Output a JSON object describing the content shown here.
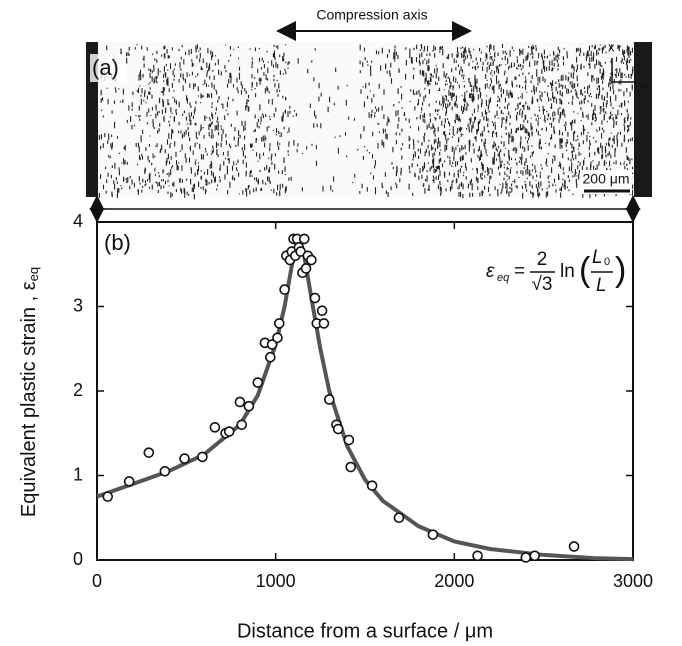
{
  "micrograph": {
    "label": "(a)",
    "arrow_label": "Compression axis",
    "scale_label": "200 μm",
    "axis_x": "x",
    "axis_y": "y"
  },
  "chart_data": {
    "type": "scatter",
    "panel_label": "(b)",
    "xlabel": "Distance from a surface / μm",
    "ylabel": "Equivalent plastic strain , ε",
    "ylabel_sub": "eq",
    "equation": {
      "lhs": "ε",
      "lhs_sub": "eq",
      "equals": "=",
      "num": "2",
      "den": "√3",
      "ln": "ln",
      "open": "(",
      "num2": "L",
      "num2_sub": "0",
      "den2": "L",
      "close": ")"
    },
    "xlim": [
      0,
      3000
    ],
    "xticks": [
      0,
      1000,
      2000,
      3000
    ],
    "ylim": [
      0,
      4
    ],
    "yticks": [
      0,
      1,
      2,
      3,
      4
    ],
    "series": [
      {
        "type": "scatter",
        "color": "#ffffff",
        "x": [
          60,
          180,
          290,
          380,
          490,
          590,
          660,
          720,
          740,
          800,
          810,
          850,
          900,
          940,
          970,
          980,
          1010,
          1020,
          1050,
          1060,
          1080,
          1090,
          1100,
          1110,
          1120,
          1130,
          1140,
          1150,
          1160,
          1170,
          1180,
          1200,
          1220,
          1230,
          1260,
          1270,
          1300,
          1340,
          1350,
          1410,
          1420,
          1540,
          1690,
          1880,
          2130,
          2400,
          2450,
          2670
        ],
        "values": [
          0.75,
          0.93,
          1.27,
          1.05,
          1.2,
          1.22,
          1.57,
          1.5,
          1.52,
          1.87,
          1.6,
          1.82,
          2.1,
          2.57,
          2.4,
          2.55,
          2.63,
          2.8,
          3.2,
          3.6,
          3.55,
          3.65,
          3.8,
          3.6,
          3.8,
          3.7,
          3.65,
          3.4,
          3.8,
          3.45,
          3.6,
          3.55,
          3.1,
          2.8,
          2.95,
          2.8,
          1.9,
          1.6,
          1.55,
          1.42,
          1.1,
          0.88,
          0.5,
          0.3,
          0.05,
          0.03,
          0.05,
          0.16
        ]
      },
      {
        "type": "line",
        "color": "#555555",
        "x": [
          0,
          200,
          400,
          600,
          800,
          900,
          1000,
          1050,
          1100,
          1130,
          1160,
          1200,
          1250,
          1300,
          1400,
          1500,
          1600,
          1800,
          2000,
          2200,
          2500,
          2800,
          3000
        ],
        "values": [
          0.75,
          0.9,
          1.05,
          1.25,
          1.6,
          1.95,
          2.55,
          3.0,
          3.6,
          3.75,
          3.6,
          3.1,
          2.5,
          2.0,
          1.35,
          0.95,
          0.7,
          0.4,
          0.22,
          0.13,
          0.06,
          0.02,
          0.01
        ]
      }
    ]
  }
}
